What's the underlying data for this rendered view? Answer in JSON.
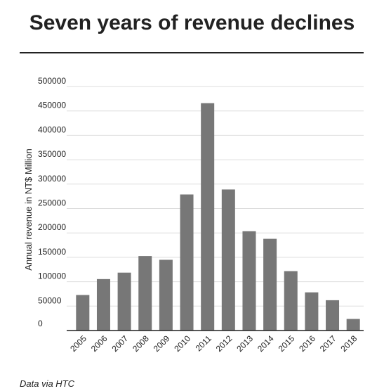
{
  "source": "Data via HTC",
  "chart_data": {
    "type": "bar",
    "title": "Seven years of revenue declines",
    "xlabel": "",
    "ylabel": "Annual revenue in NT$ Million",
    "categories": [
      "2005",
      "2006",
      "2007",
      "2008",
      "2009",
      "2010",
      "2011",
      "2012",
      "2013",
      "2014",
      "2015",
      "2016",
      "2017",
      "2018"
    ],
    "values": [
      72800,
      105400,
      118600,
      152600,
      144900,
      278800,
      465800,
      289000,
      203400,
      187900,
      121700,
      78200,
      62100,
      23700
    ],
    "yticks": [
      "0",
      "50000",
      "100000",
      "150000",
      "200000",
      "250000",
      "300000",
      "350000",
      "400000",
      "450000",
      "500000"
    ],
    "ylim": [
      0,
      500000
    ],
    "grid": true,
    "legend": "none",
    "bar_color": "#777777",
    "grid_color": "#dddddd",
    "axis_color": "#222222"
  }
}
